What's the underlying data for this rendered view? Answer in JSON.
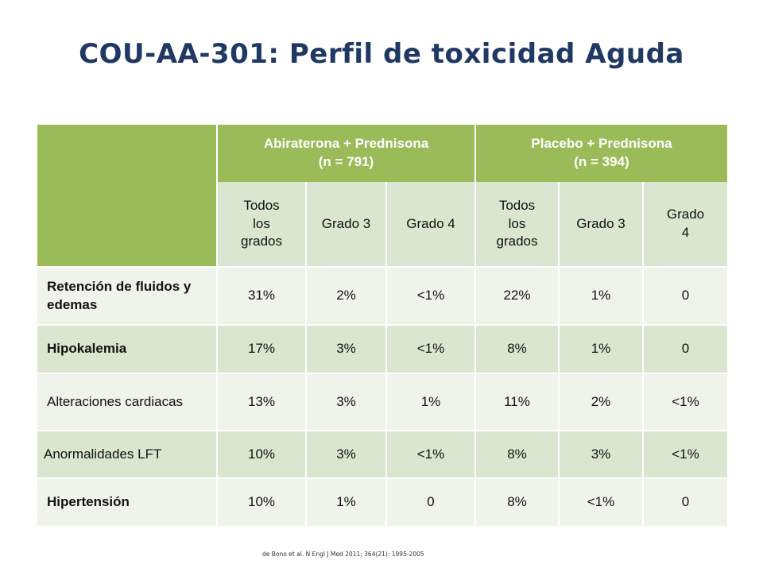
{
  "title": "COU-AA-301: Perfil de toxicidad Aguda",
  "table": {
    "groups": [
      {
        "line1": "Abiraterona + Prednisona",
        "line2": "(n = 791)"
      },
      {
        "line1": "Placebo + Prednisona",
        "line2": "(n = 394)"
      }
    ],
    "subheaders": [
      "Todos los grados",
      "Grado 3",
      "Grado 4",
      "Todos los grados",
      "Grado 3",
      "Grado 4"
    ],
    "rows": [
      {
        "label": "Retención de fluidos y edemas",
        "bold": true,
        "values": [
          "31%",
          "2%",
          "<1%",
          "22%",
          "1%",
          "0"
        ]
      },
      {
        "label": "Hipokalemia",
        "bold": true,
        "values": [
          "17%",
          "3%",
          "<1%",
          "8%",
          "1%",
          "0"
        ]
      },
      {
        "label": "Alteraciones cardiacas",
        "bold": false,
        "values": [
          "13%",
          "3%",
          "1%",
          "11%",
          "2%",
          "<1%"
        ]
      },
      {
        "label": "Anormalidades LFT",
        "bold": false,
        "values": [
          "10%",
          "3%",
          "<1%",
          "8%",
          "3%",
          "<1%"
        ]
      },
      {
        "label": "Hipertensión",
        "bold": true,
        "values": [
          "10%",
          "1%",
          "0",
          "8%",
          "<1%",
          "0"
        ]
      }
    ]
  },
  "citation": "de Bono et al. N Engl J Med 2011; 364(21): 1995-2005",
  "colors": {
    "title": "#1f3864",
    "header_green": "#9bbb59",
    "row_dark": "#dbe6d0",
    "row_light": "#eff3ea"
  }
}
